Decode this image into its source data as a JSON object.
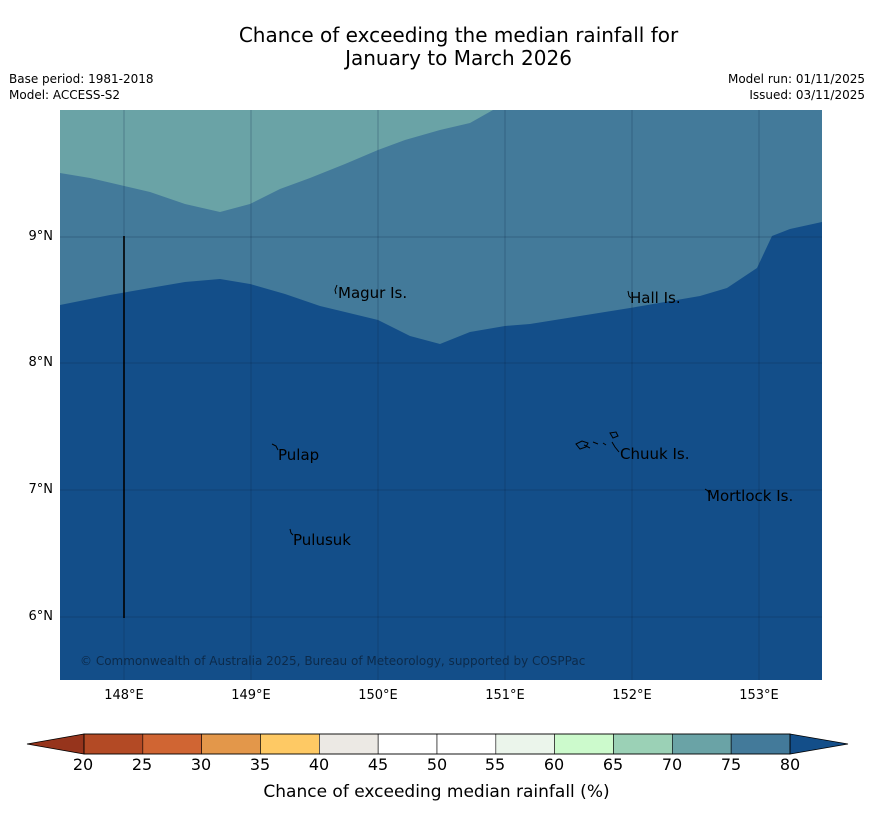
{
  "title": {
    "line1": "Chance of exceeding the median rainfall for",
    "line2": "January to March 2026"
  },
  "meta": {
    "base_period": "Base period: 1981-2018",
    "model": "Model: ACCESS-S2",
    "model_run": "Model run: 01/11/2025",
    "issued": "Issued: 03/11/2025"
  },
  "map": {
    "lat_ticks": [
      "9°N",
      "8°N",
      "7°N",
      "6°N"
    ],
    "lon_ticks": [
      "148°E",
      "149°E",
      "150°E",
      "151°E",
      "152°E",
      "153°E"
    ],
    "places": [
      "Magur Is.",
      "Hall Is.",
      "Pulap",
      "Chuuk Is.",
      "Mortlock Is.",
      "Pulusuk"
    ],
    "copyright": "© Commonwealth of Australia 2025, Bureau of Meteorology, supported by COSPPac",
    "zone_colors": {
      "above_80": "#134e89",
      "75_80": "#437a9a",
      "70_75": "#6aa3a6"
    }
  },
  "colorbar": {
    "title": "Chance of exceeding median rainfall (%)",
    "ticks": [
      "20",
      "25",
      "30",
      "35",
      "40",
      "45",
      "50",
      "55",
      "60",
      "65",
      "70",
      "75",
      "80"
    ],
    "low_extend_color": "#96341c",
    "high_extend_color": "#134e89",
    "colors": [
      "#b34a25",
      "#d06533",
      "#e3974a",
      "#fec964",
      "#ece9e4",
      "#ffffff",
      "#ffffff",
      "#ebf5eb",
      "#ccfacc",
      "#9bd1b6",
      "#6aa3a6",
      "#437a9a"
    ]
  }
}
